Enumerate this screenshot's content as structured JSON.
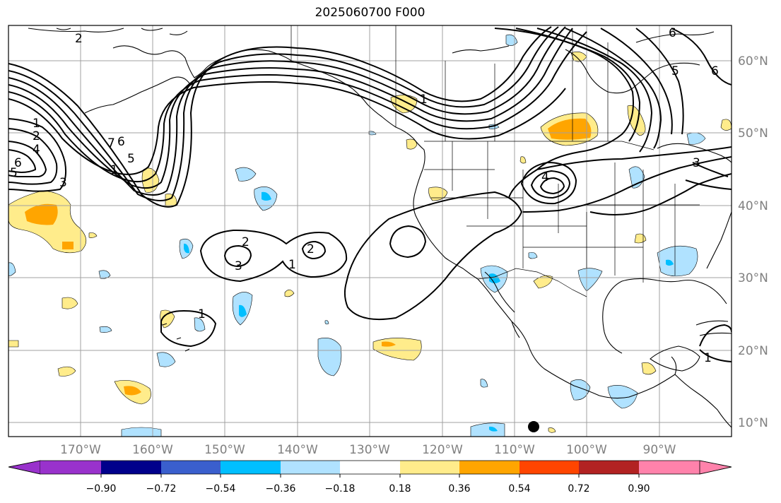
{
  "title": "2025060700 F000",
  "colors": {
    "neg_extreme": "#9932cc",
    "neg_090": "#00008b",
    "neg_072": "#3a5fcd",
    "neg_054": "#00bfff",
    "neg_036": "#b0e2ff",
    "neutral": "#ffffff",
    "pos_018": "#ffec8b",
    "pos_036": "#ffa500",
    "pos_054": "#ff4500",
    "pos_072": "#b22222",
    "pos_extreme": "#ff82ab",
    "grid": "#a0a0a0",
    "coast": "#000000"
  },
  "longitude_labels": [
    "170°W",
    "160°W",
    "150°W",
    "140°W",
    "130°W",
    "120°W",
    "110°W",
    "100°W",
    "90°W"
  ],
  "latitude_labels": [
    "60°N",
    "50°N",
    "40°N",
    "30°N",
    "20°N",
    "10°N"
  ],
  "colorbar": {
    "ticks": [
      "−0.90",
      "−0.72",
      "−0.54",
      "−0.36",
      "−0.18",
      "0.18",
      "0.36",
      "0.54",
      "0.72",
      "0.90"
    ]
  },
  "contour_labels": [
    "1",
    "2",
    "4",
    "6",
    "5",
    "3",
    "7",
    "6",
    "5",
    "1",
    "2",
    "3",
    "1",
    "2",
    "1",
    "1",
    "4",
    "6",
    "5",
    "6",
    "1",
    "3",
    "2"
  ]
}
